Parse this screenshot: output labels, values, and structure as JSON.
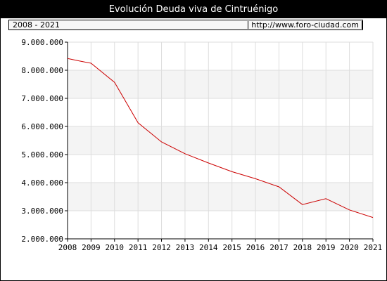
{
  "title": "Evolución Deuda viva de Cintruénigo",
  "range_label": "2008 - 2021",
  "source_url": "http://www.foro-ciudad.com",
  "colors": {
    "line": "#cc0000",
    "band": "#f4f4f4",
    "grid": "#dddddd"
  },
  "chart_data": {
    "type": "line",
    "title": "Evolución Deuda viva de Cintruénigo",
    "xlabel": "",
    "ylabel": "",
    "x": [
      2008,
      2008.5,
      2009,
      2010,
      2011,
      2012,
      2013,
      2014,
      2015,
      2016,
      2017,
      2018,
      2019,
      2020,
      2021
    ],
    "values": [
      8420000,
      8330000,
      8250000,
      7570000,
      6130000,
      5450000,
      5030000,
      4700000,
      4390000,
      4140000,
      3850000,
      3220000,
      3430000,
      3030000,
      2760000
    ],
    "ylim": [
      2000000,
      9000000
    ],
    "xlim": [
      2008,
      2021
    ],
    "y_ticks": [
      "2.000.000",
      "3.000.000",
      "4.000.000",
      "5.000.000",
      "6.000.000",
      "7.000.000",
      "8.000.000",
      "9.000.000"
    ],
    "x_ticks": [
      "2008",
      "2009",
      "2010",
      "2011",
      "2012",
      "2013",
      "2014",
      "2015",
      "2016",
      "2017",
      "2018",
      "2019",
      "2020",
      "2021"
    ],
    "grid": true
  }
}
